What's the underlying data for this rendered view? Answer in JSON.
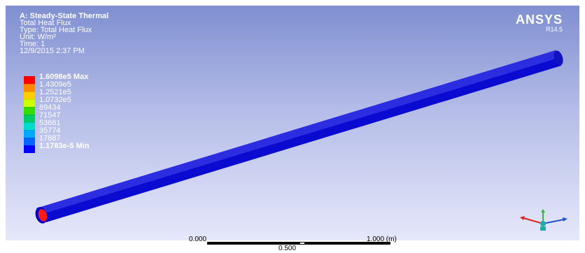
{
  "info": {
    "title": "A: Steady-State Thermal",
    "line1": "Total Heat Flux",
    "line2": "Type: Total Heat Flux",
    "line3": "Unit: W/m²",
    "line4": "Time: 1",
    "line5": "12/9/2015 2:37 PM"
  },
  "legend": {
    "max_label": "1.6098e5 Max",
    "v1": "1.4309e5",
    "v2": "1.2521e5",
    "v3": "1.0732e5",
    "v4": "89434",
    "v5": "71547",
    "v6": "53661",
    "v7": "35774",
    "v8": "17887",
    "min_label": "1.1783e-5 Min",
    "colors": [
      "#ff0000",
      "#ff8800",
      "#ffcc00",
      "#ccff00",
      "#33dd00",
      "#00cc66",
      "#00ddcc",
      "#00aaff",
      "#0066ff",
      "#0000ff"
    ]
  },
  "logo": {
    "name": "ANSYS",
    "version": "R14.5"
  },
  "scale": {
    "left": "0.000",
    "right": "1.000 (m)",
    "mid": "0.500"
  },
  "icons": {
    "triad": "xyz-triad-icon"
  }
}
